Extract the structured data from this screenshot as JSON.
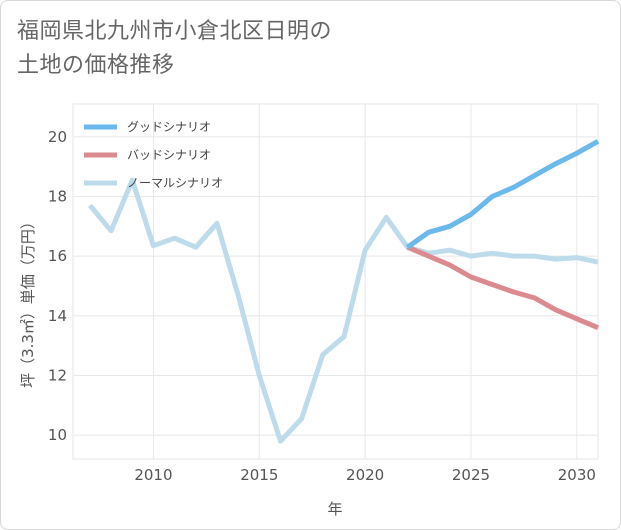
{
  "title": {
    "line1": "福岡県北九州市小倉北区日明の",
    "line2": "土地の価格推移"
  },
  "chart_data": {
    "type": "line",
    "xlabel": "年",
    "ylabel": "坪（3.3㎡）単価（万円）",
    "xlim": [
      2006.2,
      2031
    ],
    "ylim": [
      9.2,
      21.1
    ],
    "xticks": [
      2010,
      2015,
      2020,
      2025,
      2030
    ],
    "yticks": [
      10,
      12,
      14,
      16,
      18,
      20
    ],
    "grid": true,
    "legend_position": "top-left",
    "series": [
      {
        "name": "グッドシナリオ",
        "color": "#6ab8ec",
        "x": [
          2022,
          2023,
          2024,
          2025,
          2026,
          2027,
          2028,
          2029,
          2030,
          2031
        ],
        "y": [
          16.3,
          16.8,
          17.0,
          17.4,
          18.0,
          18.3,
          18.7,
          19.1,
          19.45,
          19.85
        ]
      },
      {
        "name": "バッドシナリオ",
        "color": "#db8b90",
        "x": [
          2022,
          2023,
          2024,
          2025,
          2026,
          2027,
          2028,
          2029,
          2030,
          2031
        ],
        "y": [
          16.3,
          16.0,
          15.7,
          15.3,
          15.05,
          14.8,
          14.6,
          14.2,
          13.9,
          13.6
        ]
      },
      {
        "name": "ノーマルシナリオ",
        "color": "#bddbea",
        "x": [
          2007,
          2008,
          2009,
          2010,
          2011,
          2012,
          2013,
          2014,
          2015,
          2016,
          2017,
          2018,
          2019,
          2020,
          2021,
          2022,
          2023,
          2024,
          2025,
          2026,
          2027,
          2028,
          2029,
          2030,
          2031
        ],
        "y": [
          17.7,
          16.85,
          18.55,
          16.35,
          16.6,
          16.3,
          17.1,
          14.7,
          12.0,
          9.8,
          10.55,
          12.7,
          13.3,
          16.2,
          17.3,
          16.3,
          16.1,
          16.2,
          16.0,
          16.1,
          16.0,
          16.0,
          15.9,
          15.95,
          15.8
        ]
      }
    ]
  }
}
